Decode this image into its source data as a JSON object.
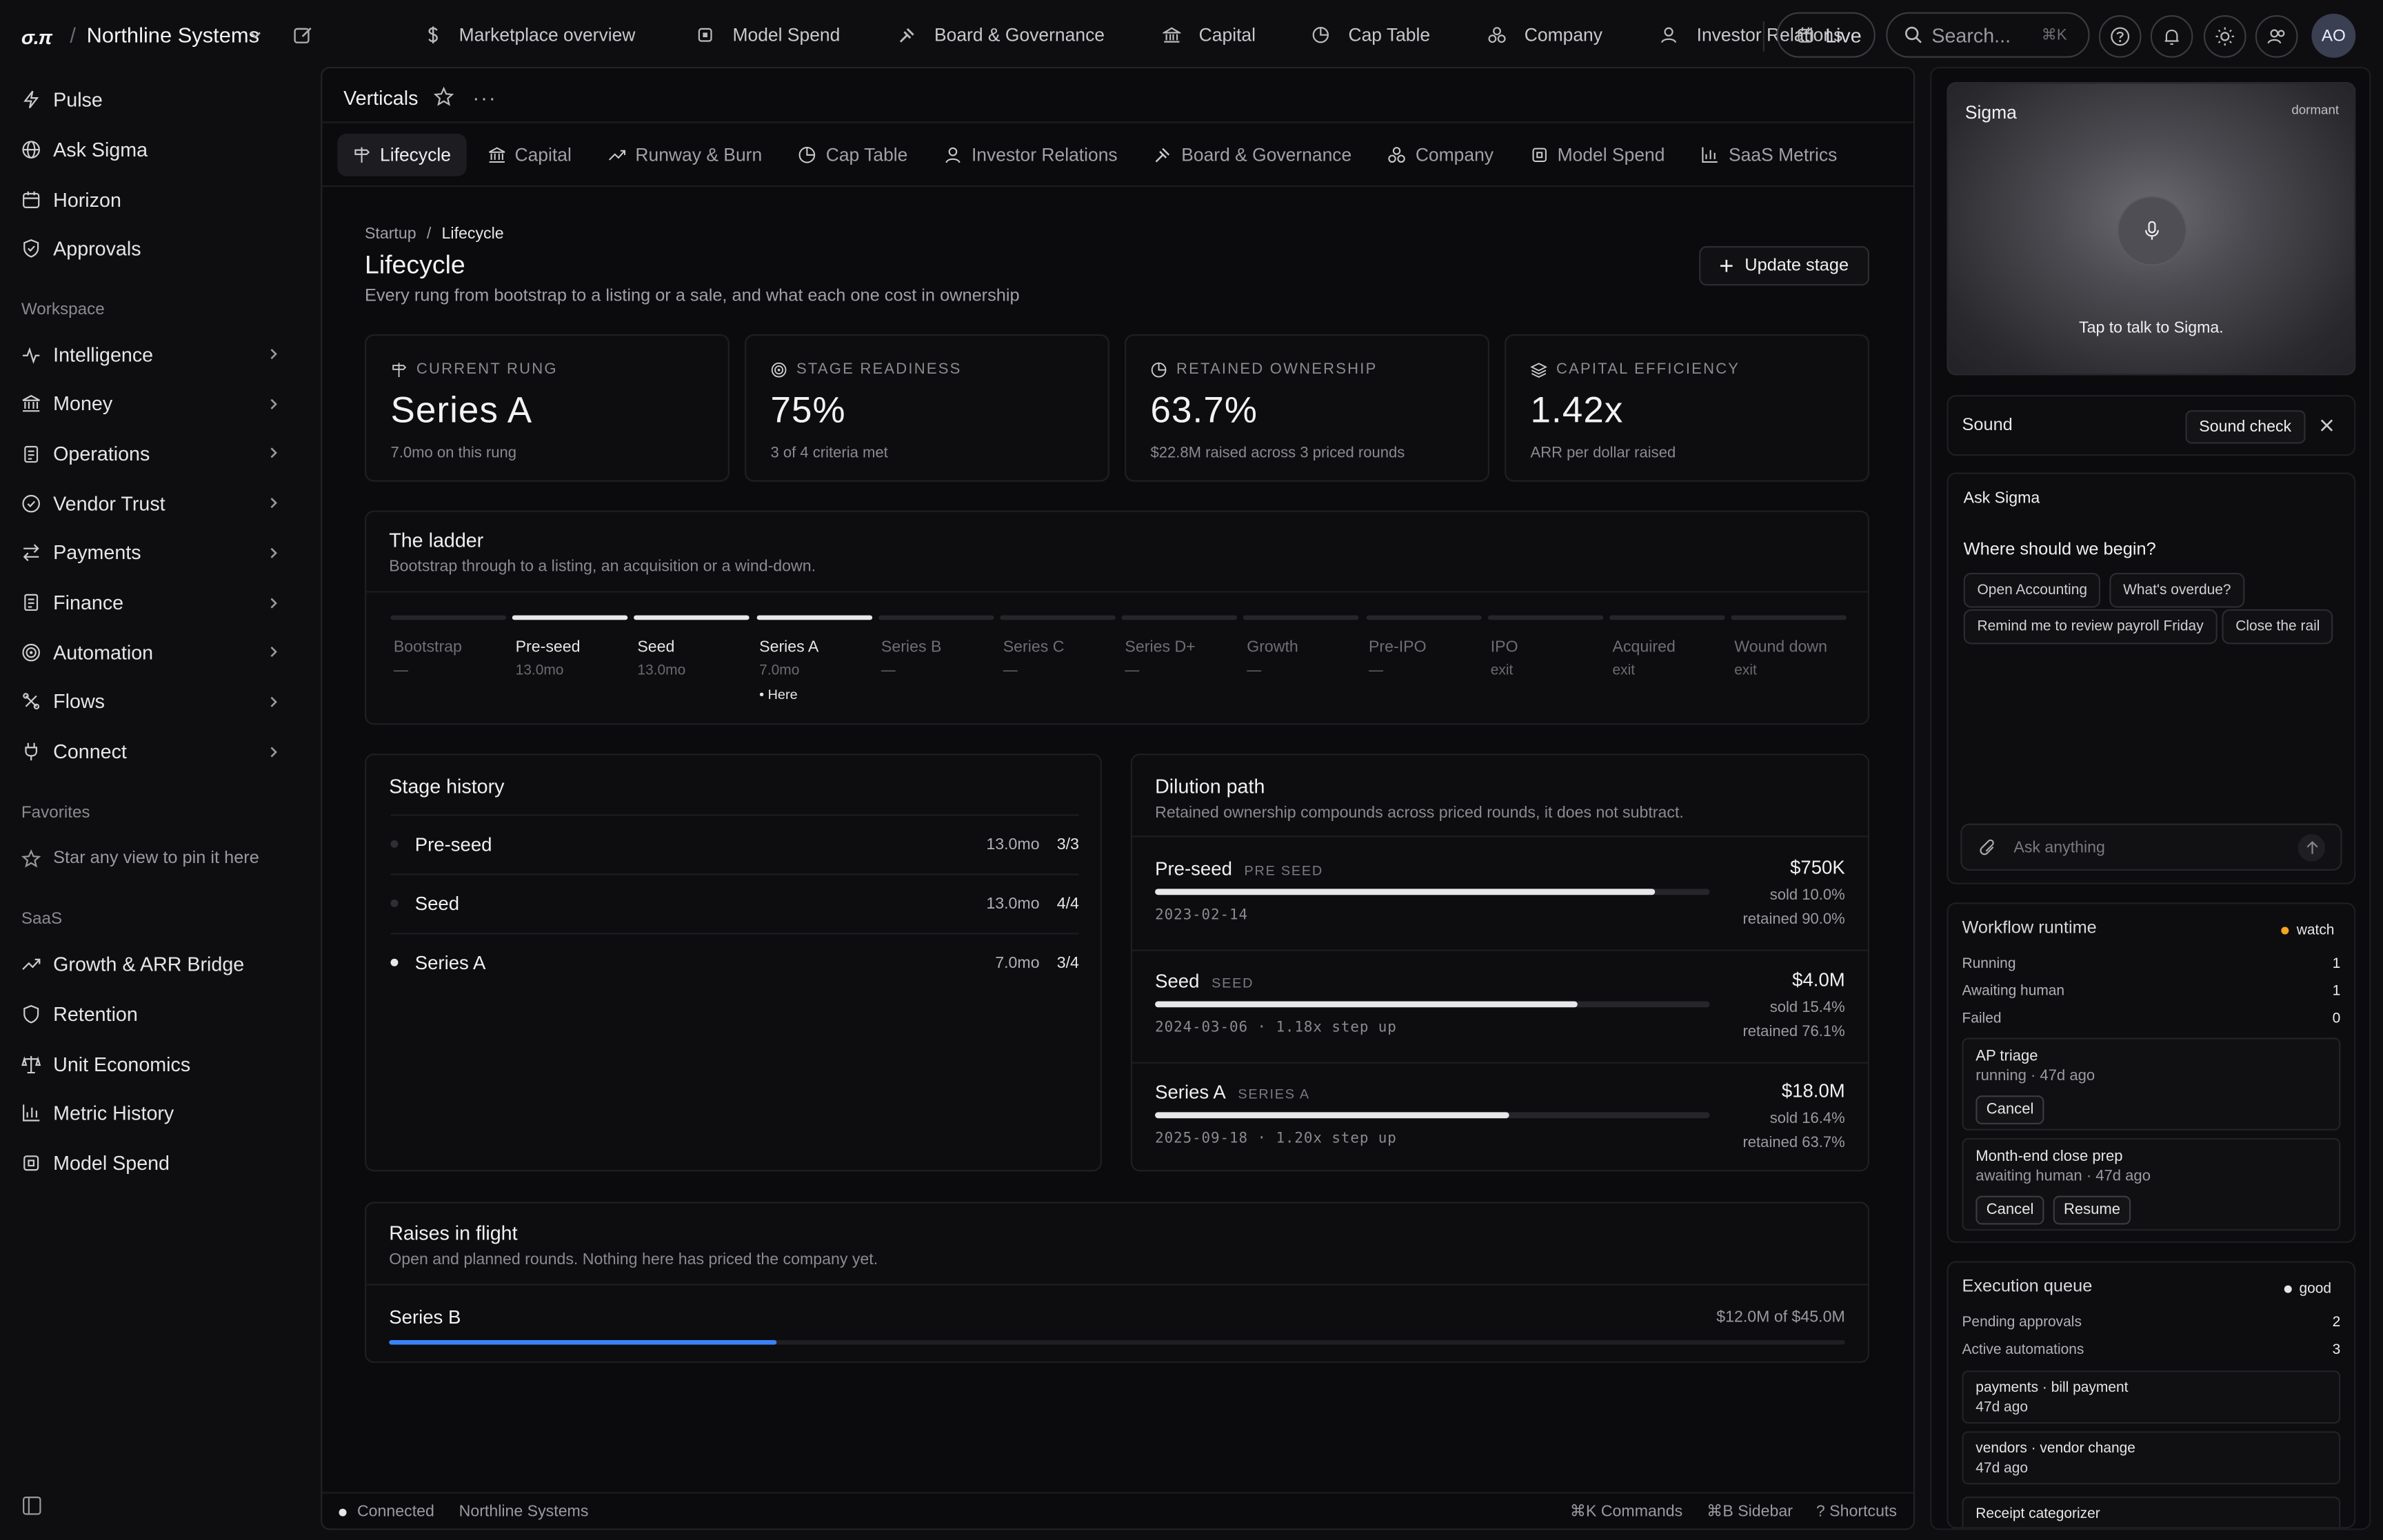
{
  "brand": {
    "logo": "σ.π",
    "org": "Northline Systems"
  },
  "topnav": {
    "items": [
      {
        "label": "Marketplace overview",
        "icon": "dollar-icon"
      },
      {
        "label": "Model Spend",
        "icon": "chip-icon"
      },
      {
        "label": "Board & Governance",
        "icon": "gavel-icon"
      },
      {
        "label": "Capital",
        "icon": "bank-icon"
      },
      {
        "label": "Cap Table",
        "icon": "pie-icon"
      },
      {
        "label": "Company",
        "icon": "company-icon"
      },
      {
        "label": "Investor Relations",
        "icon": "user-icon"
      }
    ],
    "live": "Live",
    "search_placeholder": "Search...",
    "search_shortcut": "⌘K",
    "avatar": "AO"
  },
  "sidebar": {
    "top": [
      {
        "label": "Pulse",
        "icon": "bolt-icon"
      },
      {
        "label": "Ask Sigma",
        "icon": "globe-icon"
      },
      {
        "label": "Horizon",
        "icon": "calendar-icon"
      },
      {
        "label": "Approvals",
        "icon": "shield-check-icon"
      }
    ],
    "workspace_heading": "Workspace",
    "workspace": [
      {
        "label": "Intelligence",
        "icon": "pulse-icon"
      },
      {
        "label": "Money",
        "icon": "bank-icon"
      },
      {
        "label": "Operations",
        "icon": "clipboard-icon"
      },
      {
        "label": "Vendor Trust",
        "icon": "badge-check-icon"
      },
      {
        "label": "Payments",
        "icon": "arrows-icon"
      },
      {
        "label": "Finance",
        "icon": "receipt-icon"
      },
      {
        "label": "Automation",
        "icon": "target-icon"
      },
      {
        "label": "Flows",
        "icon": "workflow-icon"
      },
      {
        "label": "Connect",
        "icon": "plug-icon"
      }
    ],
    "favorites_heading": "Favorites",
    "favorites_empty": "Star any view to pin it here",
    "saas_heading": "SaaS",
    "saas": [
      {
        "label": "Growth & ARR Bridge",
        "icon": "trend-icon"
      },
      {
        "label": "Retention",
        "icon": "shield-icon"
      },
      {
        "label": "Unit Economics",
        "icon": "scale-icon"
      },
      {
        "label": "Metric History",
        "icon": "bar-chart-icon"
      },
      {
        "label": "Model Spend",
        "icon": "chip-icon"
      }
    ]
  },
  "main": {
    "view_title": "Verticals",
    "tabs": [
      {
        "label": "Lifecycle",
        "icon": "signpost-icon",
        "active": true
      },
      {
        "label": "Capital",
        "icon": "bank-icon"
      },
      {
        "label": "Runway & Burn",
        "icon": "trend-icon"
      },
      {
        "label": "Cap Table",
        "icon": "pie-icon"
      },
      {
        "label": "Investor Relations",
        "icon": "user-icon"
      },
      {
        "label": "Board & Governance",
        "icon": "gavel-icon"
      },
      {
        "label": "Company",
        "icon": "company-icon"
      },
      {
        "label": "Model Spend",
        "icon": "chip-icon"
      },
      {
        "label": "SaaS Metrics",
        "icon": "bar-chart-icon"
      }
    ],
    "breadcrumb": {
      "parent": "Startup",
      "sep": "/",
      "current": "Lifecycle"
    },
    "page_title": "Lifecycle",
    "page_subtitle": "Every rung from bootstrap to a listing or a sale, and what each one cost in ownership",
    "update_button": "Update stage",
    "kpis": [
      {
        "label": "CURRENT RUNG",
        "value": "Series A",
        "sub": "7.0mo on this rung",
        "icon": "signpost-icon"
      },
      {
        "label": "STAGE READINESS",
        "value": "75%",
        "sub": "3 of 4 criteria met",
        "icon": "target-icon"
      },
      {
        "label": "RETAINED OWNERSHIP",
        "value": "63.7%",
        "sub": "$22.8M raised across 3 priced rounds",
        "icon": "pie-icon"
      },
      {
        "label": "CAPITAL EFFICIENCY",
        "value": "1.42x",
        "sub": "ARR per dollar raised",
        "icon": "layers-icon"
      }
    ],
    "ladder": {
      "title": "The ladder",
      "subtitle": "Bootstrap through to a listing, an acquisition or a wind-down.",
      "here_label": "• Here",
      "rungs": [
        {
          "name": "Bootstrap",
          "sub": "—",
          "done": false
        },
        {
          "name": "Pre-seed",
          "sub": "13.0mo",
          "done": true
        },
        {
          "name": "Seed",
          "sub": "13.0mo",
          "done": true
        },
        {
          "name": "Series A",
          "sub": "7.0mo",
          "done": true,
          "current": true
        },
        {
          "name": "Series B",
          "sub": "—",
          "done": false
        },
        {
          "name": "Series C",
          "sub": "—",
          "done": false
        },
        {
          "name": "Series D+",
          "sub": "—",
          "done": false
        },
        {
          "name": "Growth",
          "sub": "—",
          "done": false
        },
        {
          "name": "Pre-IPO",
          "sub": "—",
          "done": false
        },
        {
          "name": "IPO",
          "sub": "exit",
          "done": false
        },
        {
          "name": "Acquired",
          "sub": "exit",
          "done": false
        },
        {
          "name": "Wound down",
          "sub": "exit",
          "done": false
        }
      ]
    },
    "history": {
      "title": "Stage history",
      "rows": [
        {
          "name": "Pre-seed",
          "duration": "13.0mo",
          "score": "3/3",
          "current": false
        },
        {
          "name": "Seed",
          "duration": "13.0mo",
          "score": "4/4",
          "current": false
        },
        {
          "name": "Series A",
          "duration": "7.0mo",
          "score": "3/4",
          "current": true
        }
      ]
    },
    "dilution": {
      "title": "Dilution path",
      "subtitle": "Retained ownership compounds across priced rounds, it does not subtract.",
      "rounds": [
        {
          "name": "Pre-seed",
          "tag": "PRE SEED",
          "amount": "$750K",
          "sold": "sold 10.0%",
          "retained": "retained 90.0%",
          "meta": "2023-02-14",
          "retained_frac": 0.9
        },
        {
          "name": "Seed",
          "tag": "SEED",
          "amount": "$4.0M",
          "sold": "sold 15.4%",
          "retained": "retained 76.1%",
          "meta": "2024-03-06 · 1.18x step up",
          "retained_frac": 0.761
        },
        {
          "name": "Series A",
          "tag": "SERIES A",
          "amount": "$18.0M",
          "sold": "sold 16.4%",
          "retained": "retained 63.7%",
          "meta": "2025-09-18 · 1.20x step up",
          "retained_frac": 0.637
        }
      ]
    },
    "raises": {
      "title": "Raises in flight",
      "subtitle": "Open and planned rounds. Nothing here has priced the company yet.",
      "rows": [
        {
          "name": "Series B",
          "progress": "$12.0M of $45.0M",
          "fraction": 0.2667,
          "color": "#3b82f6"
        }
      ]
    }
  },
  "footer": {
    "status": "Connected",
    "org": "Northline Systems",
    "commands": "⌘K Commands",
    "sidebar": "⌘B Sidebar",
    "shortcuts": "? Shortcuts"
  },
  "right": {
    "sigma": {
      "title": "Sigma",
      "state": "dormant",
      "hint": "Tap to talk to Sigma."
    },
    "sound": {
      "label": "Sound",
      "check": "Sound check"
    },
    "ask": {
      "title": "Ask Sigma",
      "prompt": "Where should we begin?",
      "chips": [
        "Open Accounting",
        "What's overdue?",
        "Remind me to review payroll Friday",
        "Close the rail"
      ],
      "input_placeholder": "Ask anything"
    },
    "workflow": {
      "title": "Workflow runtime",
      "badge": "watch",
      "badge_color": "#f5a524",
      "stats": [
        {
          "label": "Running",
          "value": "1"
        },
        {
          "label": "Awaiting human",
          "value": "1"
        },
        {
          "label": "Failed",
          "value": "0"
        }
      ],
      "jobs": [
        {
          "name": "AP triage",
          "status": "running · 47d ago",
          "actions": [
            "Cancel"
          ]
        },
        {
          "name": "Month-end close prep",
          "status": "awaiting human · 47d ago",
          "actions": [
            "Cancel",
            "Resume"
          ]
        }
      ]
    },
    "queue": {
      "title": "Execution queue",
      "badge": "good",
      "badge_color": "#e6e6e8",
      "stats": [
        {
          "label": "Pending approvals",
          "value": "2"
        },
        {
          "label": "Active automations",
          "value": "3"
        }
      ],
      "items": [
        {
          "name": "payments · bill payment",
          "time": "47d ago"
        },
        {
          "name": "vendors · vendor change",
          "time": "47d ago"
        },
        {
          "name": "Receipt categorizer",
          "time": ""
        }
      ]
    }
  }
}
